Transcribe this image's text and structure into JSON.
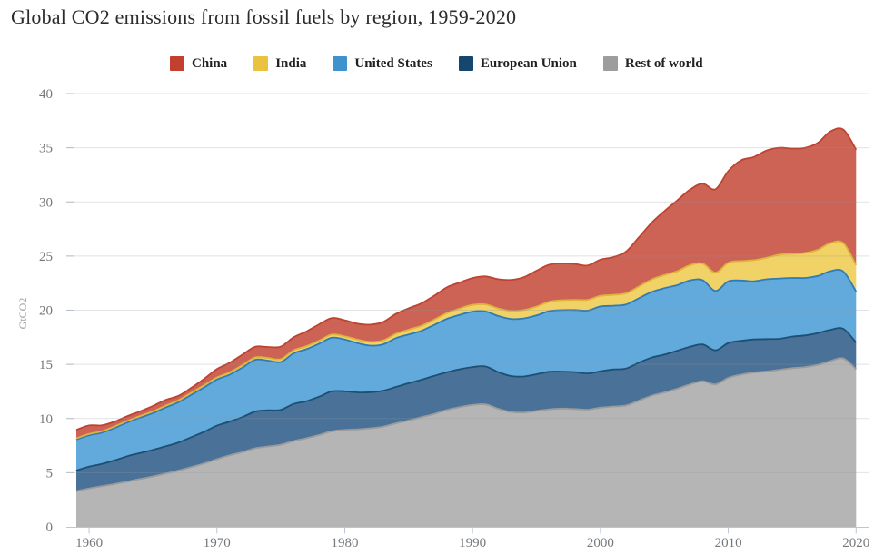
{
  "title": "Global CO2 emissions from fossil fuels by region, 1959-2020",
  "colors": {
    "background": "#ffffff",
    "axis_line": "#b9c7d6",
    "gridline": "#8f9ba6",
    "grid_tick": "#b6bfc7",
    "tick_label": "#75787c",
    "axis_title": "#9aa0a6",
    "title_text": "#2b2b2b",
    "legend_label": "#212121"
  },
  "chart_data": {
    "type": "area",
    "stacked": true,
    "title": "Global CO2 emissions from fossil fuels by region, 1959-2020",
    "xlabel": "",
    "ylabel": "GtCO2",
    "ylim": [
      0,
      40
    ],
    "xlim": [
      1959,
      2020
    ],
    "grid": true,
    "legend_position": "top",
    "yticks": [
      0,
      5,
      10,
      15,
      20,
      25,
      30,
      35,
      40
    ],
    "xticks": [
      1960,
      1970,
      1980,
      1990,
      2000,
      2010,
      2020
    ],
    "stack_order_bottom_to_top": [
      "Rest of world",
      "European Union",
      "United States",
      "India",
      "China"
    ],
    "x": [
      1959,
      1960,
      1961,
      1962,
      1963,
      1964,
      1965,
      1966,
      1967,
      1968,
      1969,
      1970,
      1971,
      1972,
      1973,
      1974,
      1975,
      1976,
      1977,
      1978,
      1979,
      1980,
      1981,
      1982,
      1983,
      1984,
      1985,
      1986,
      1987,
      1988,
      1989,
      1990,
      1991,
      1992,
      1993,
      1994,
      1995,
      1996,
      1997,
      1998,
      1999,
      2000,
      2001,
      2002,
      2003,
      2004,
      2005,
      2006,
      2007,
      2008,
      2009,
      2010,
      2011,
      2012,
      2013,
      2014,
      2015,
      2016,
      2017,
      2018,
      2019,
      2020
    ],
    "series": [
      {
        "name": "Rest of world",
        "color": "#9d9d9d",
        "fill": "#b5b5b5",
        "stroke": "#9b9b9b",
        "values": [
          3.3,
          3.55,
          3.75,
          3.95,
          4.18,
          4.42,
          4.65,
          4.92,
          5.2,
          5.52,
          5.85,
          6.25,
          6.6,
          6.9,
          7.25,
          7.42,
          7.58,
          7.92,
          8.18,
          8.48,
          8.82,
          8.95,
          9.0,
          9.1,
          9.25,
          9.55,
          9.82,
          10.12,
          10.42,
          10.8,
          11.05,
          11.25,
          11.3,
          10.9,
          10.6,
          10.55,
          10.7,
          10.85,
          10.92,
          10.88,
          10.82,
          11.0,
          11.1,
          11.2,
          11.65,
          12.1,
          12.4,
          12.75,
          13.15,
          13.45,
          13.15,
          13.75,
          14.05,
          14.25,
          14.35,
          14.5,
          14.65,
          14.75,
          14.95,
          15.3,
          15.55,
          14.55
        ]
      },
      {
        "name": "European Union",
        "color": "#15476e",
        "fill": "#4a7298",
        "stroke": "#1c4f74",
        "values": [
          1.9,
          2.01,
          2.06,
          2.19,
          2.34,
          2.4,
          2.46,
          2.52,
          2.59,
          2.76,
          2.93,
          3.09,
          3.12,
          3.23,
          3.4,
          3.34,
          3.22,
          3.43,
          3.42,
          3.54,
          3.69,
          3.56,
          3.41,
          3.33,
          3.32,
          3.36,
          3.44,
          3.46,
          3.52,
          3.47,
          3.5,
          3.5,
          3.51,
          3.39,
          3.32,
          3.33,
          3.39,
          3.47,
          3.41,
          3.41,
          3.34,
          3.36,
          3.43,
          3.42,
          3.5,
          3.52,
          3.5,
          3.51,
          3.47,
          3.39,
          3.14,
          3.22,
          3.12,
          3.05,
          2.98,
          2.86,
          2.91,
          2.92,
          2.94,
          2.89,
          2.73,
          2.46
        ]
      },
      {
        "name": "United States",
        "color": "#3e93cf",
        "fill": "#62aadc",
        "stroke": "#2e7cb5",
        "values": [
          2.86,
          2.89,
          2.88,
          2.99,
          3.12,
          3.26,
          3.39,
          3.58,
          3.72,
          3.91,
          4.09,
          4.26,
          4.33,
          4.58,
          4.77,
          4.59,
          4.42,
          4.67,
          4.8,
          4.89,
          4.95,
          4.78,
          4.55,
          4.3,
          4.28,
          4.51,
          4.5,
          4.52,
          4.7,
          4.93,
          5.02,
          5.12,
          5.07,
          5.17,
          5.27,
          5.36,
          5.42,
          5.6,
          5.68,
          5.73,
          5.81,
          5.98,
          5.88,
          5.91,
          5.95,
          6.06,
          6.13,
          6.05,
          6.13,
          5.93,
          5.49,
          5.7,
          5.57,
          5.37,
          5.52,
          5.57,
          5.42,
          5.31,
          5.27,
          5.42,
          5.29,
          4.71
        ]
      },
      {
        "name": "India",
        "color": "#e9c23f",
        "fill": "#f1d266",
        "stroke": "#dfb33c",
        "values": [
          0.11,
          0.12,
          0.13,
          0.14,
          0.15,
          0.15,
          0.17,
          0.17,
          0.18,
          0.19,
          0.2,
          0.19,
          0.21,
          0.22,
          0.22,
          0.24,
          0.26,
          0.27,
          0.28,
          0.28,
          0.29,
          0.29,
          0.32,
          0.34,
          0.36,
          0.39,
          0.44,
          0.46,
          0.49,
          0.53,
          0.58,
          0.62,
          0.66,
          0.7,
          0.73,
          0.77,
          0.82,
          0.87,
          0.91,
          0.93,
          0.99,
          0.98,
          1.0,
          1.03,
          1.08,
          1.15,
          1.21,
          1.29,
          1.4,
          1.54,
          1.68,
          1.71,
          1.8,
          1.95,
          2.0,
          2.2,
          2.23,
          2.31,
          2.42,
          2.59,
          2.62,
          2.44
        ]
      },
      {
        "name": "China",
        "color": "#c4402e",
        "fill": "#cc6355",
        "stroke": "#bc4430",
        "values": [
          0.78,
          0.79,
          0.55,
          0.45,
          0.43,
          0.44,
          0.49,
          0.53,
          0.41,
          0.46,
          0.59,
          0.78,
          0.89,
          0.97,
          0.99,
          1.01,
          1.16,
          1.21,
          1.36,
          1.51,
          1.53,
          1.49,
          1.47,
          1.6,
          1.7,
          1.85,
          1.97,
          2.08,
          2.21,
          2.38,
          2.41,
          2.48,
          2.58,
          2.7,
          2.88,
          3.03,
          3.32,
          3.41,
          3.4,
          3.32,
          3.17,
          3.35,
          3.49,
          3.85,
          4.54,
          5.23,
          5.9,
          6.53,
          6.98,
          7.38,
          7.71,
          8.47,
          9.3,
          9.53,
          9.9,
          9.87,
          9.72,
          9.7,
          9.87,
          10.31,
          10.49,
          10.67
        ]
      }
    ]
  }
}
